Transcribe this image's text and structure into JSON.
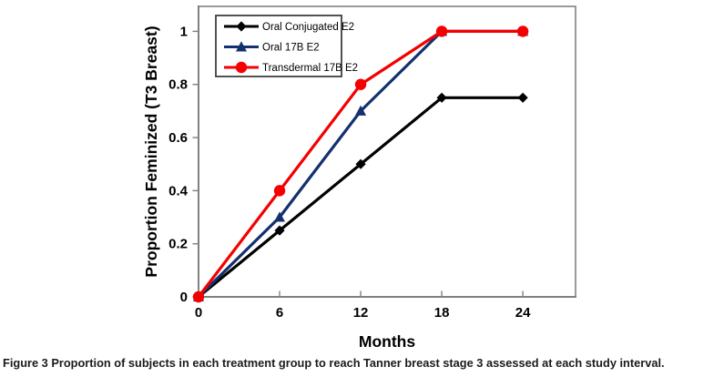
{
  "figure": {
    "caption_label": "Figure 3",
    "caption_text": "Proportion of subjects in each treatment group to reach Tanner breast stage 3 assessed at each study interval."
  },
  "chart_data": {
    "type": "line",
    "title": "",
    "xlabel": "Months",
    "ylabel": "Proportion Feminized (T3 Breast)",
    "x": [
      0,
      6,
      12,
      18,
      24
    ],
    "xtick_labels": [
      "0",
      "6",
      "12",
      "18",
      "24"
    ],
    "yticks": [
      0,
      0.2,
      0.4,
      0.6,
      0.8,
      1
    ],
    "ytick_labels": [
      "0",
      "0.2",
      "0.4",
      "0.6",
      "0.8",
      "1"
    ],
    "xlim": [
      0,
      27.9
    ],
    "ylim": [
      0,
      1.094
    ],
    "grid": false,
    "legend_position": "top-left-inside",
    "series": [
      {
        "name": "Oral Conjugated E2",
        "marker": "diamond",
        "color": "#000000",
        "values": [
          0,
          0.25,
          0.5,
          0.75,
          0.75
        ]
      },
      {
        "name": "Oral 17B E2",
        "marker": "triangle",
        "color": "#14316F",
        "values": [
          0,
          0.3,
          0.7,
          1,
          1
        ]
      },
      {
        "name": "Transdermal 17B E2",
        "marker": "circle",
        "color": "#F40000",
        "values": [
          0,
          0.4,
          0.8,
          1,
          1
        ]
      }
    ],
    "colors": {
      "axis": "#808080",
      "legend_border": "#3F3F3F",
      "background": "#FFFFFF"
    }
  }
}
